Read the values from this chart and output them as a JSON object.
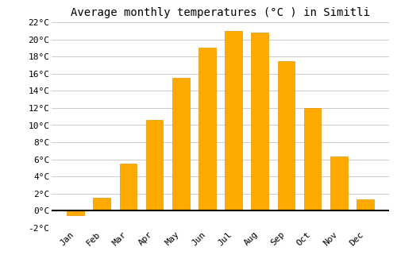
{
  "months": [
    "Jan",
    "Feb",
    "Mar",
    "Apr",
    "May",
    "Jun",
    "Jul",
    "Aug",
    "Sep",
    "Oct",
    "Nov",
    "Dec"
  ],
  "values": [
    -0.5,
    1.5,
    5.5,
    10.6,
    15.5,
    19.0,
    21.0,
    20.8,
    17.5,
    12.0,
    6.3,
    1.3
  ],
  "bar_color": "#FFAA00",
  "bar_edge_color": "#E89500",
  "title": "Average monthly temperatures (°C ) in Simitli",
  "ylim": [
    -2,
    22
  ],
  "yticks": [
    -2,
    0,
    2,
    4,
    6,
    8,
    10,
    12,
    14,
    16,
    18,
    20,
    22
  ],
  "background_color": "#FFFFFF",
  "grid_color": "#CCCCCC",
  "title_fontsize": 10,
  "tick_fontsize": 8,
  "font_family": "monospace"
}
